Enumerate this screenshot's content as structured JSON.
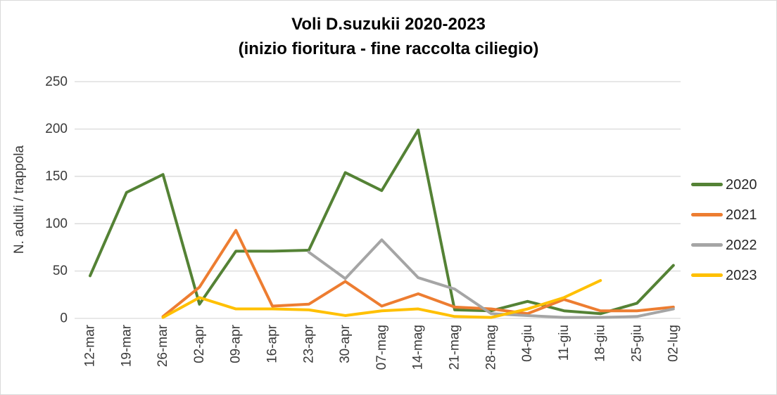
{
  "chart_data": {
    "type": "line",
    "title": "Voli D.suzukii 2020-2023",
    "subtitle": "(inizio fioritura - fine raccolta ciliegio)",
    "ylabel": "N. adulti / trappola",
    "xlabel": "",
    "ylim": [
      0,
      250
    ],
    "ytick_step": 50,
    "grid": "horizontal-only",
    "legend_position": "right",
    "gridline_color": "#d9d9d9",
    "categories": [
      "12-mar",
      "19-mar",
      "26-mar",
      "02-apr",
      "09-apr",
      "16-apr",
      "23-apr",
      "30-apr",
      "07-mag",
      "14-mag",
      "21-mag",
      "28-mag",
      "04-giu",
      "11-giu",
      "18-giu",
      "25-giu",
      "02-lug"
    ],
    "series": [
      {
        "name": "2020",
        "color": "#548235",
        "values": [
          45,
          133,
          152,
          15,
          71,
          71,
          72,
          154,
          135,
          199,
          9,
          8,
          18,
          8,
          5,
          16,
          56
        ]
      },
      {
        "name": "2021",
        "color": "#ED7D31",
        "values": [
          null,
          null,
          2,
          33,
          93,
          13,
          15,
          39,
          13,
          26,
          12,
          10,
          5,
          20,
          8,
          8,
          12
        ]
      },
      {
        "name": "2022",
        "color": "#A5A5A5",
        "values": [
          null,
          null,
          null,
          null,
          null,
          null,
          70,
          42,
          83,
          43,
          31,
          5,
          3,
          1,
          1,
          2,
          10
        ]
      },
      {
        "name": "2023",
        "color": "#FFC000",
        "values": [
          null,
          null,
          1,
          22,
          10,
          10,
          9,
          3,
          8,
          10,
          2,
          1,
          10,
          22,
          40,
          null,
          null
        ]
      }
    ]
  }
}
